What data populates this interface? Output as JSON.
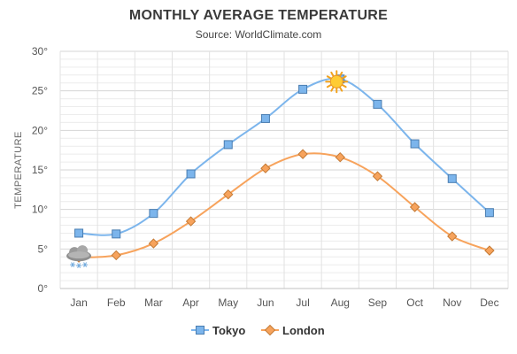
{
  "chart_data": {
    "type": "line",
    "title": "MONTHLY AVERAGE TEMPERATURE",
    "subtitle": "Source: WorldClimate.com",
    "ylabel": "TEMPERATURE",
    "xlabel": "",
    "categories": [
      "Jan",
      "Feb",
      "Mar",
      "Apr",
      "May",
      "Jun",
      "Jul",
      "Aug",
      "Sep",
      "Oct",
      "Nov",
      "Dec"
    ],
    "ylim": [
      0,
      30
    ],
    "y_ticks": [
      "0°",
      "5°",
      "10°",
      "15°",
      "20°",
      "25°",
      "30°"
    ],
    "grid": true,
    "legend": "bottom",
    "series": [
      {
        "name": "Tokyo",
        "values": [
          7.0,
          6.9,
          9.5,
          14.5,
          18.2,
          21.5,
          25.2,
          26.5,
          23.3,
          18.3,
          13.9,
          9.6
        ],
        "color": "#7cb5ec",
        "marker": "square"
      },
      {
        "name": "London",
        "values": [
          3.9,
          4.2,
          5.7,
          8.5,
          11.9,
          15.2,
          17.0,
          16.6,
          14.2,
          10.3,
          6.6,
          4.8
        ],
        "color": "#f7a35c",
        "marker": "diamond"
      }
    ],
    "annotations": [
      {
        "icon": "sun-icon",
        "series": "Tokyo",
        "category": "Aug"
      },
      {
        "icon": "snow-cloud-icon",
        "series": "London",
        "category": "Jan"
      }
    ]
  }
}
